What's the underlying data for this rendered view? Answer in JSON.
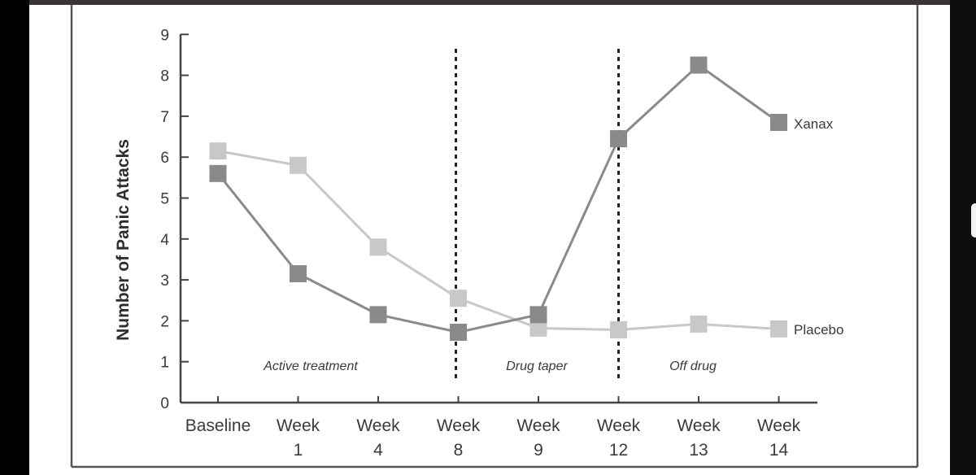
{
  "chart_data": {
    "type": "line",
    "title": "",
    "ylabel": "Number of Panic Attacks",
    "xlabel": "",
    "ylim": [
      0,
      9
    ],
    "yticks": [
      "0",
      "1",
      "2",
      "3",
      "4",
      "5",
      "6",
      "7",
      "8",
      "9"
    ],
    "categories": [
      {
        "line1": "Baseline",
        "line2": ""
      },
      {
        "line1": "Week",
        "line2": "1"
      },
      {
        "line1": "Week",
        "line2": "4"
      },
      {
        "line1": "Week",
        "line2": "8"
      },
      {
        "line1": "Week",
        "line2": "9"
      },
      {
        "line1": "Week",
        "line2": "12"
      },
      {
        "line1": "Week",
        "line2": "13"
      },
      {
        "line1": "Week",
        "line2": "14"
      }
    ],
    "series": [
      {
        "name": "Xanax",
        "color": "#8a8a8a",
        "values": [
          5.6,
          3.15,
          2.15,
          1.72,
          2.15,
          6.45,
          8.25,
          6.85
        ]
      },
      {
        "name": "Placebo",
        "color": "#c8c8c8",
        "values": [
          6.15,
          5.8,
          3.8,
          2.55,
          1.82,
          1.78,
          1.92,
          1.8
        ]
      }
    ],
    "phase_dividers_after_category": [
      3,
      5
    ],
    "regions": [
      {
        "label": "Active treatment"
      },
      {
        "label": "Drug taper"
      },
      {
        "label": "Off drug"
      }
    ],
    "legend": "inline-right",
    "grid": false
  }
}
